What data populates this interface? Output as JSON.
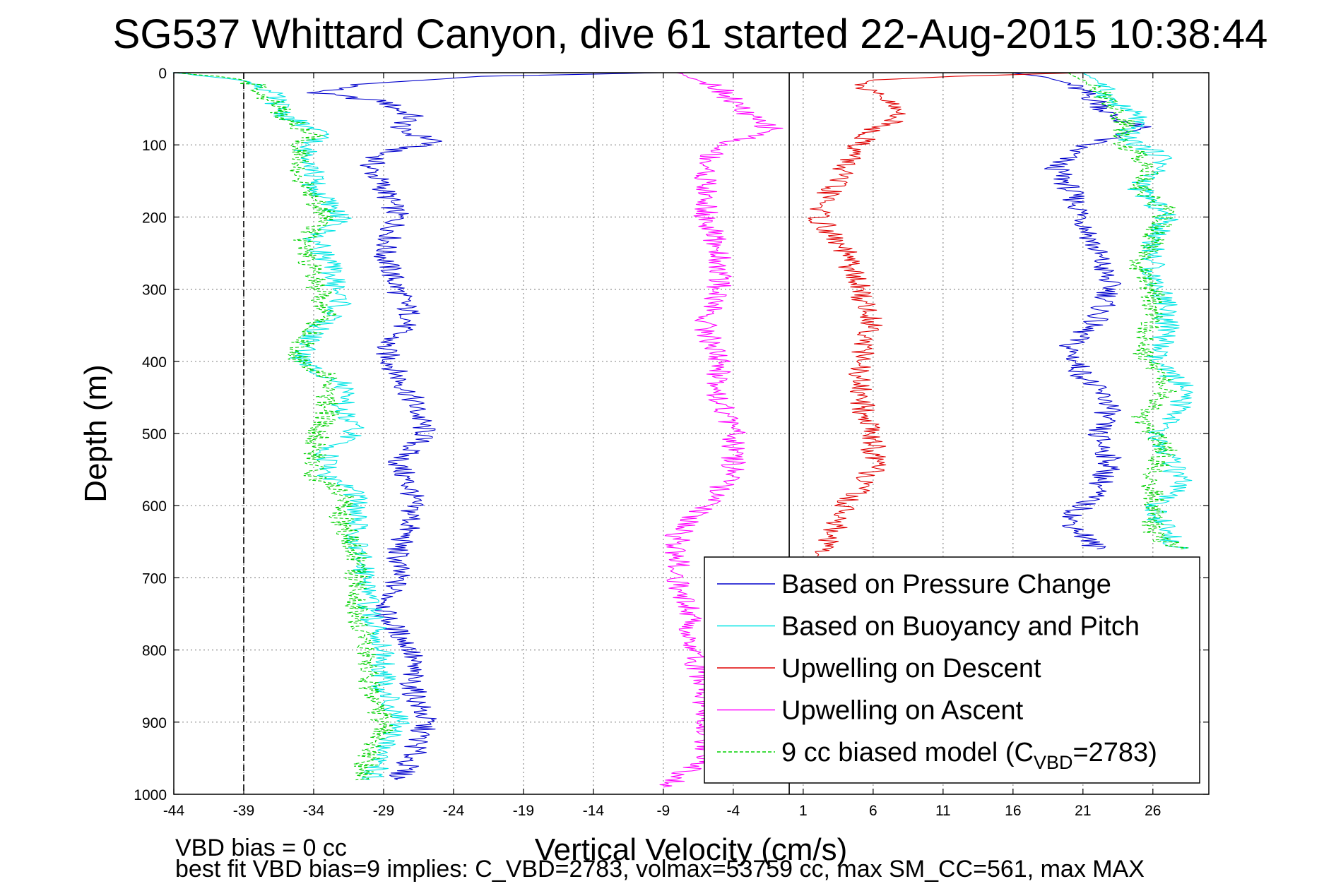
{
  "chart_data": {
    "type": "line",
    "title": "SG537 Whittard Canyon, dive 61 started 22-Aug-2015 10:38:44",
    "xlabel": "Vertical Velocity (cm/s)",
    "ylabel": "Depth (m)",
    "xlim": [
      -44,
      30
    ],
    "ylim": [
      0,
      1000
    ],
    "y_reversed": true,
    "grid": true,
    "legend_position": "bottom-right",
    "xticks": [
      -44,
      -39,
      -34,
      -29,
      -24,
      -19,
      -14,
      -9,
      -4,
      1,
      6,
      11,
      16,
      21,
      26
    ],
    "yticks": [
      0,
      100,
      200,
      300,
      400,
      500,
      600,
      700,
      800,
      900,
      1000
    ],
    "reference_lines": [
      {
        "x": -39,
        "style": "dashed",
        "color": "#000000"
      },
      {
        "x": 0,
        "style": "solid",
        "color": "#000000"
      }
    ],
    "series": [
      {
        "name": "Based on Pressure Change",
        "color": "#0000cc",
        "style": "solid",
        "segments": [
          {
            "depth": [
              0,
              5,
              15,
              28,
              40,
              50,
              60,
              80,
              95,
              110,
              130,
              160,
              200,
              250,
              300,
              340,
              380,
              420,
              450,
              500,
              540,
              580,
              620,
              660,
              700,
              750,
              800,
              850,
              900,
              950,
              980
            ],
            "velocity": [
              -9,
              -22,
              -30,
              -34,
              -29,
              -28,
              -27,
              -28,
              -25,
              -29,
              -30,
              -29,
              -28,
              -29,
              -28,
              -27,
              -29,
              -28,
              -27,
              -26,
              -28,
              -27,
              -27,
              -28,
              -28,
              -29,
              -27,
              -27,
              -26,
              -27,
              -28
            ]
          },
          {
            "depth": [
              0,
              5,
              15,
              40,
              60,
              75,
              85,
              100,
              130,
              160,
              200,
              250,
              300,
              340,
              380,
              420,
              460,
              500,
              540,
              580,
              620,
              660
            ],
            "velocity": [
              16,
              18,
              20,
              22,
              23,
              25,
              24,
              21,
              19,
              20,
              21,
              22,
              23,
              22,
              20,
              21,
              23,
              22,
              23,
              22,
              20,
              22
            ]
          }
        ]
      },
      {
        "name": "Based on Buoyancy and Pitch",
        "color": "#00e5e5",
        "style": "solid",
        "segments": [
          {
            "depth": [
              0,
              8,
              15,
              30,
              60,
              90,
              100,
              120,
              160,
              200,
              230,
              260,
              320,
              360,
              400,
              430,
              470,
              500,
              520,
              560,
              580,
              620,
              660,
              700,
              750,
              800,
              850,
              900,
              950,
              980
            ],
            "velocity": [
              -44,
              -40,
              -38,
              -37,
              -36,
              -33,
              -35,
              -34,
              -34,
              -32,
              -34,
              -33,
              -32,
              -34,
              -35,
              -32,
              -32,
              -31,
              -33,
              -33,
              -31,
              -31,
              -31,
              -30,
              -30,
              -29,
              -29,
              -28,
              -29,
              -30
            ]
          },
          {
            "depth": [
              0,
              10,
              40,
              60,
              90,
              120,
              160,
              200,
              240,
              280,
              320,
              360,
              400,
              430,
              470,
              500,
              530,
              570,
              600,
              640,
              660
            ],
            "velocity": [
              21,
              22,
              23,
              25,
              24,
              27,
              25,
              27,
              26,
              26,
              27,
              27,
              26,
              28,
              28,
              26,
              27,
              28,
              26,
              27,
              28
            ]
          }
        ]
      },
      {
        "name": "Upwelling on Descent",
        "color": "#e00000",
        "style": "solid",
        "segments": [
          {
            "depth": [
              0,
              5,
              10,
              20,
              40,
              60,
              80,
              100,
              130,
              160,
              200,
              250,
              300,
              350,
              400,
              450,
              500,
              550,
              600,
              640,
              670
            ],
            "velocity": [
              21,
              12,
              6,
              5,
              7,
              8,
              6,
              5,
              4,
              3,
              2,
              4,
              5,
              6,
              5,
              5,
              6,
              6,
              4,
              3,
              2
            ]
          }
        ]
      },
      {
        "name": "Upwelling on Ascent",
        "color": "#ff00ff",
        "style": "solid",
        "segments": [
          {
            "depth": [
              0,
              20,
              60,
              80,
              100,
              130,
              160,
              200,
              250,
              300,
              350,
              400,
              450,
              500,
              550,
              600,
              640,
              700,
              750,
              800,
              850,
              900,
              950,
              990
            ],
            "velocity": [
              -8,
              -5,
              -3,
              -1,
              -5,
              -6,
              -6,
              -6,
              -5,
              -5,
              -6,
              -5,
              -5,
              -4,
              -4,
              -6,
              -8,
              -8,
              -7,
              -7,
              -6,
              -6,
              -6,
              -9
            ]
          }
        ]
      },
      {
        "name": "9 cc biased model (C_VBD=2783)",
        "legend_label": "9 cc biased model (C",
        "legend_sub": "VBD",
        "legend_tail": "=2783)",
        "color": "#00d000",
        "style": "dashed",
        "segments": [
          {
            "depth": [
              0,
              5,
              10,
              20,
              40,
              60,
              90,
              100,
              110,
              150,
              200,
              240,
              280,
              330,
              380,
              400,
              420,
              470,
              520,
              560,
              580,
              620,
              660,
              700,
              750,
              800,
              850,
              900,
              950,
              980
            ],
            "velocity": [
              -44,
              -41,
              -39,
              -38,
              -37,
              -36,
              -34,
              -36,
              -35,
              -35,
              -33,
              -35,
              -34,
              -33,
              -35,
              -35,
              -33,
              -33,
              -34,
              -34,
              -32,
              -32,
              -31,
              -31,
              -31,
              -30,
              -30,
              -29,
              -30,
              -31
            ]
          },
          {
            "depth": [
              0,
              10,
              40,
              70,
              100,
              130,
              160,
              190,
              230,
              270,
              300,
              340,
              380,
              400,
              440,
              480,
              520,
              560,
              600,
              640,
              660
            ],
            "velocity": [
              20,
              21,
              23,
              24,
              24,
              26,
              25,
              27,
              26,
              25,
              26,
              26,
              25,
              26,
              27,
              25,
              27,
              26,
              26,
              26,
              28
            ]
          }
        ]
      }
    ]
  },
  "notes": {
    "line1": "VBD bias = 0 cc",
    "line2": "best fit VBD bias=9 implies: C_VBD=2783, volmax=53759 cc, max SM_CC=561, max MAX"
  }
}
